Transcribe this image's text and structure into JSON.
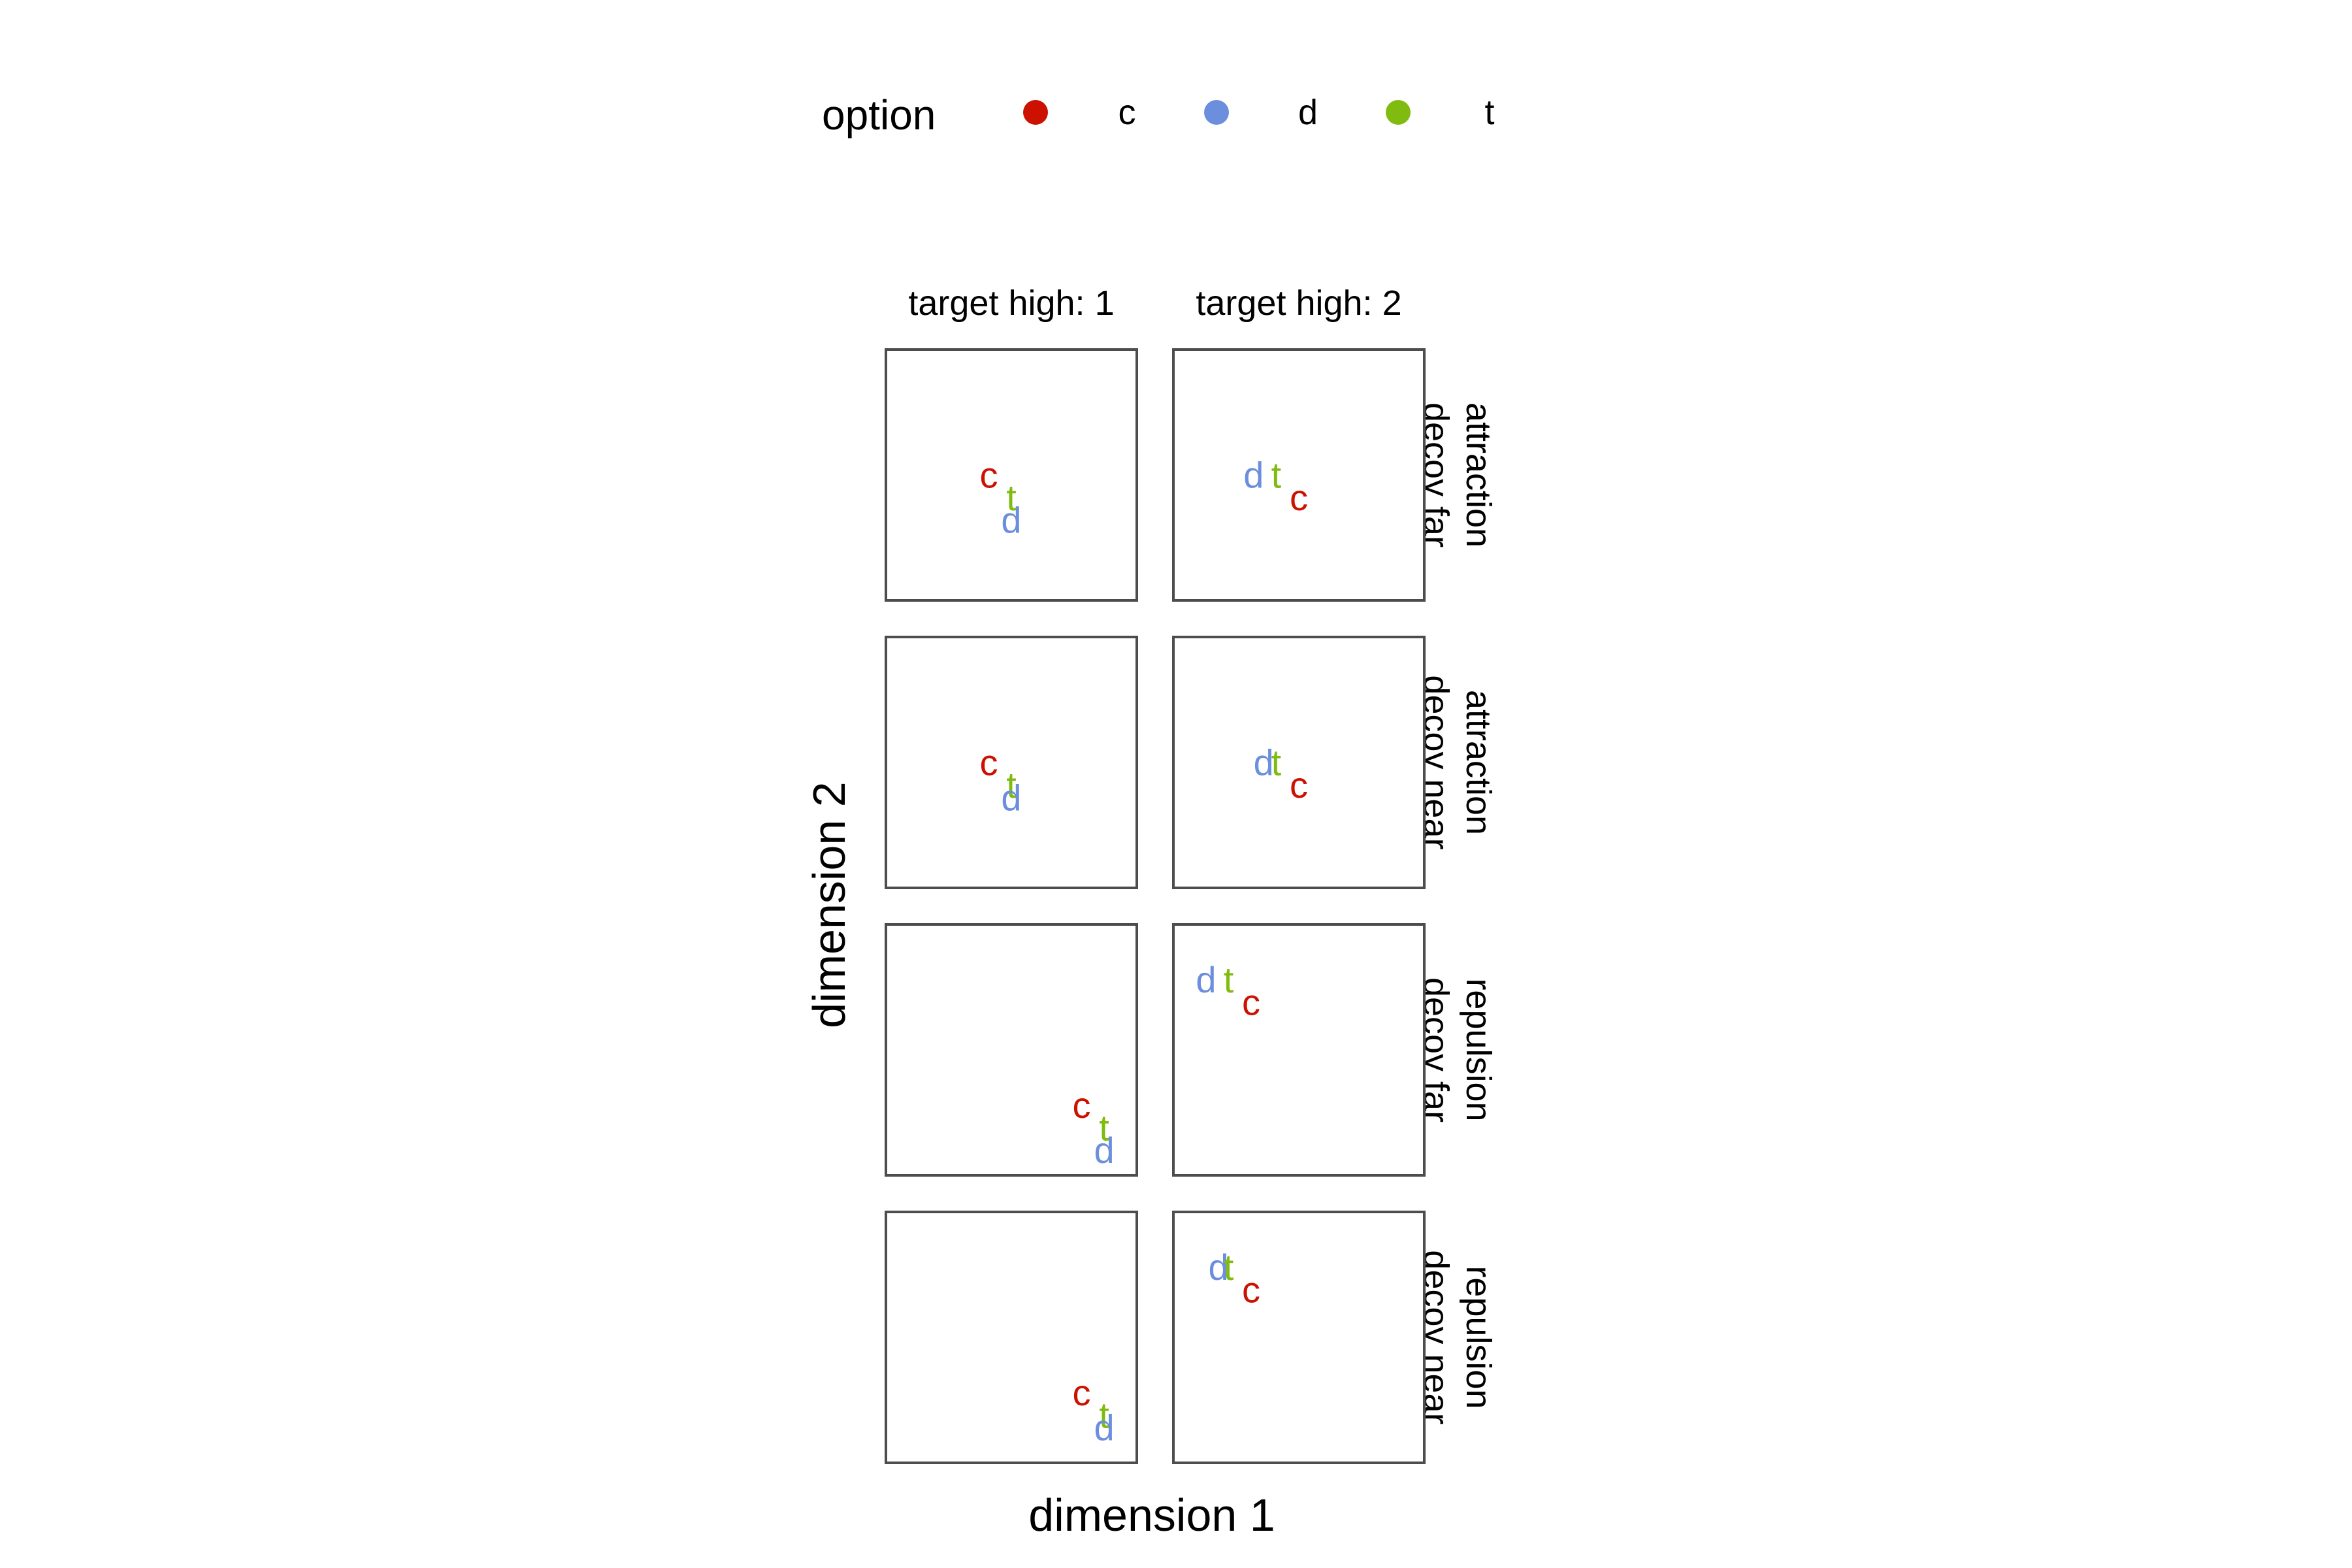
{
  "legend": {
    "title": "option",
    "entries": [
      {
        "key": "c",
        "color": "#cc1100"
      },
      {
        "key": "d",
        "color": "#6b8fdc"
      },
      {
        "key": "t",
        "color": "#80bb10"
      }
    ]
  },
  "chart_data": {
    "type": "scatter",
    "marker": "text-label",
    "xlabel": "dimension 1",
    "ylabel": "dimension 2",
    "xlim": [
      0,
      1
    ],
    "ylim": [
      0,
      1
    ],
    "axis_ticks": false,
    "grid": false,
    "legend_position": "top",
    "column_facets": [
      "target high: 1",
      "target high: 2"
    ],
    "row_facets": [
      [
        "attraction",
        "decoy far"
      ],
      [
        "attraction",
        "decoy near"
      ],
      [
        "repulsion",
        "decoy far"
      ],
      [
        "repulsion",
        "decoy near"
      ]
    ],
    "panels": [
      {
        "row": 0,
        "col": 0,
        "points": [
          {
            "option": "c",
            "x": 0.41,
            "y": 0.5
          },
          {
            "option": "t",
            "x": 0.5,
            "y": 0.41
          },
          {
            "option": "d",
            "x": 0.5,
            "y": 0.32
          }
        ]
      },
      {
        "row": 0,
        "col": 1,
        "points": [
          {
            "option": "d",
            "x": 0.32,
            "y": 0.5
          },
          {
            "option": "t",
            "x": 0.41,
            "y": 0.5
          },
          {
            "option": "c",
            "x": 0.5,
            "y": 0.41
          }
        ]
      },
      {
        "row": 1,
        "col": 0,
        "points": [
          {
            "option": "c",
            "x": 0.41,
            "y": 0.5
          },
          {
            "option": "t",
            "x": 0.5,
            "y": 0.41
          },
          {
            "option": "d",
            "x": 0.5,
            "y": 0.36
          }
        ]
      },
      {
        "row": 1,
        "col": 1,
        "points": [
          {
            "option": "d",
            "x": 0.36,
            "y": 0.5
          },
          {
            "option": "t",
            "x": 0.41,
            "y": 0.5
          },
          {
            "option": "c",
            "x": 0.5,
            "y": 0.41
          }
        ]
      },
      {
        "row": 2,
        "col": 0,
        "points": [
          {
            "option": "c",
            "x": 0.78,
            "y": 0.28
          },
          {
            "option": "t",
            "x": 0.87,
            "y": 0.19
          },
          {
            "option": "d",
            "x": 0.87,
            "y": 0.1
          }
        ]
      },
      {
        "row": 2,
        "col": 1,
        "points": [
          {
            "option": "d",
            "x": 0.13,
            "y": 0.78
          },
          {
            "option": "t",
            "x": 0.22,
            "y": 0.78
          },
          {
            "option": "c",
            "x": 0.31,
            "y": 0.69
          }
        ]
      },
      {
        "row": 3,
        "col": 0,
        "points": [
          {
            "option": "c",
            "x": 0.78,
            "y": 0.28
          },
          {
            "option": "t",
            "x": 0.87,
            "y": 0.19
          },
          {
            "option": "d",
            "x": 0.87,
            "y": 0.14
          }
        ]
      },
      {
        "row": 3,
        "col": 1,
        "points": [
          {
            "option": "d",
            "x": 0.18,
            "y": 0.78
          },
          {
            "option": "t",
            "x": 0.22,
            "y": 0.78
          },
          {
            "option": "c",
            "x": 0.31,
            "y": 0.69
          }
        ]
      }
    ]
  }
}
